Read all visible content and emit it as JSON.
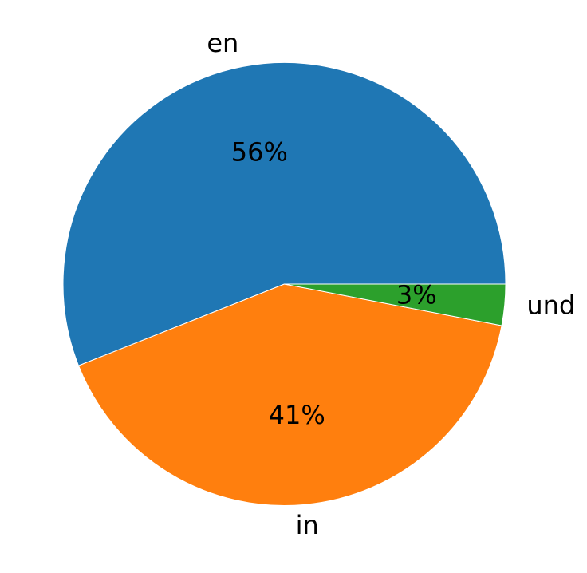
{
  "chart_data": {
    "type": "pie",
    "categories": [
      "en",
      "in",
      "und"
    ],
    "values": [
      56,
      41,
      3
    ],
    "value_labels": [
      "56%",
      "41%",
      "3%"
    ],
    "colors": [
      "#1f77b4",
      "#ff7f0e",
      "#2ca02c"
    ],
    "start_angle_deg": 0,
    "direction": "counterclockwise",
    "legend": "none"
  }
}
